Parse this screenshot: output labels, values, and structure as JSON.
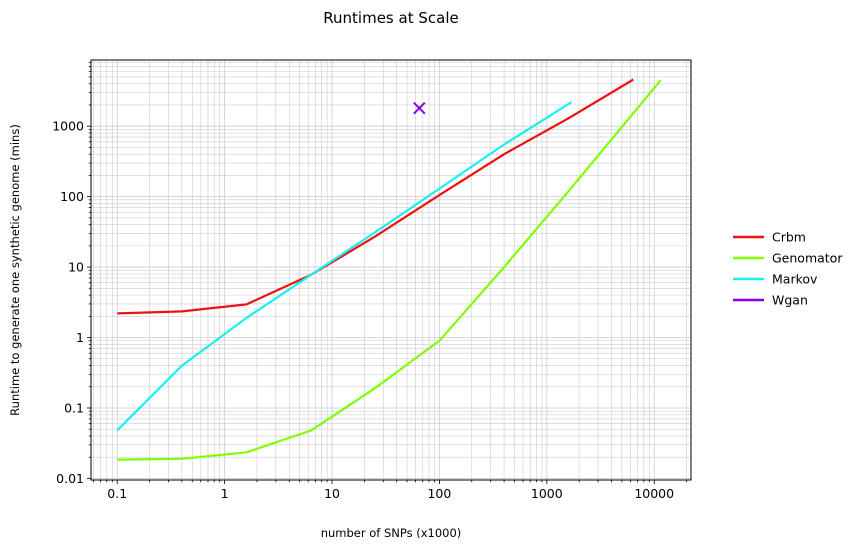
{
  "chart_data": {
    "type": "line",
    "title": "Runtimes at Scale",
    "xlabel": "number of SNPs (x1000)",
    "ylabel": "Runtime to generate one synthetic genome (mins)",
    "xscale": "log",
    "yscale": "log",
    "xlim": [
      0.057,
      22000
    ],
    "ylim": [
      0.0095,
      8700
    ],
    "grid": true,
    "grid_minor": true,
    "legend_position": "right",
    "x_ticks": [
      {
        "value": 0.1,
        "label": "0.1"
      },
      {
        "value": 1,
        "label": "1"
      },
      {
        "value": 10,
        "label": "10"
      },
      {
        "value": 100,
        "label": "100"
      },
      {
        "value": 1000,
        "label": "1000"
      },
      {
        "value": 10000,
        "label": "10000"
      }
    ],
    "y_ticks": [
      {
        "value": 0.01,
        "label": "0.01"
      },
      {
        "value": 0.1,
        "label": "0.1"
      },
      {
        "value": 1,
        "label": "1"
      },
      {
        "value": 10,
        "label": "10"
      },
      {
        "value": 100,
        "label": "100"
      },
      {
        "value": 1000,
        "label": "1000"
      }
    ],
    "series": [
      {
        "name": "Crbm",
        "color": "#ee1111",
        "marker": "none",
        "x": [
          0.1,
          0.4,
          1.6,
          6.4,
          25,
          100,
          400,
          1600,
          6400
        ],
        "y": [
          2.2,
          2.35,
          2.95,
          7.8,
          27,
          105,
          400,
          1300,
          4600
        ]
      },
      {
        "name": "Genomator",
        "color": "#80ff00",
        "marker": "none",
        "x": [
          0.1,
          0.4,
          1.6,
          6.4,
          25,
          100,
          400,
          1600,
          11500
        ],
        "y": [
          0.0185,
          0.019,
          0.0235,
          0.048,
          0.19,
          0.9,
          10,
          120,
          4500
        ]
      },
      {
        "name": "Markov",
        "color": "#18f0f0",
        "marker": "none",
        "x": [
          0.1,
          0.4,
          1.6,
          6.4,
          25,
          100,
          400,
          1700
        ],
        "y": [
          0.048,
          0.4,
          1.9,
          7.8,
          31,
          130,
          550,
          2200
        ]
      },
      {
        "name": "Wgan",
        "color": "#8800ee",
        "marker": "x",
        "x": [
          65
        ],
        "y": [
          1800
        ]
      }
    ]
  }
}
